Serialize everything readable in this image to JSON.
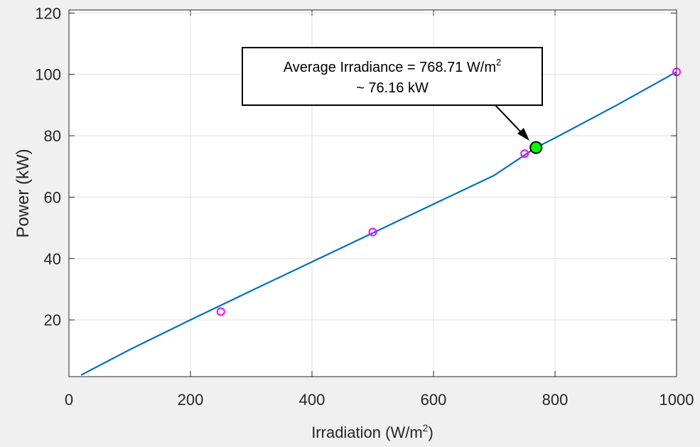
{
  "chart_data": {
    "type": "line",
    "xlabel_main": "Irradiation (W/m",
    "xlabel_sup": "2",
    "xlabel_end": ")",
    "ylabel": "Power (kW)",
    "xlim": [
      0,
      1000
    ],
    "ylim": [
      1.5,
      121
    ],
    "grid": true,
    "x_ticks": [
      0,
      200,
      400,
      600,
      800,
      1000
    ],
    "y_ticks": [
      20,
      40,
      60,
      80,
      100,
      120
    ],
    "curve": {
      "x": [
        20,
        100,
        200,
        300,
        400,
        500,
        600,
        700,
        768.71,
        800,
        900,
        1000
      ],
      "y": [
        2.0,
        10.3,
        20.0,
        29.5,
        38.9,
        48.3,
        57.7,
        67.1,
        76.16,
        79.3,
        89.8,
        100.8
      ],
      "color": "#0072bd"
    },
    "markers": {
      "x": [
        250,
        500,
        750,
        1000
      ],
      "y": [
        22.7,
        48.6,
        74.2,
        100.8
      ],
      "color": "#ff00ff"
    },
    "highlight": {
      "x": 768.71,
      "y": 76.16,
      "color": "#00ff00"
    },
    "annotation": {
      "line1_main": "Average Irradiance = 768.71 W/m",
      "line1_sup": "2",
      "line2": "~ 76.16 kW"
    }
  }
}
